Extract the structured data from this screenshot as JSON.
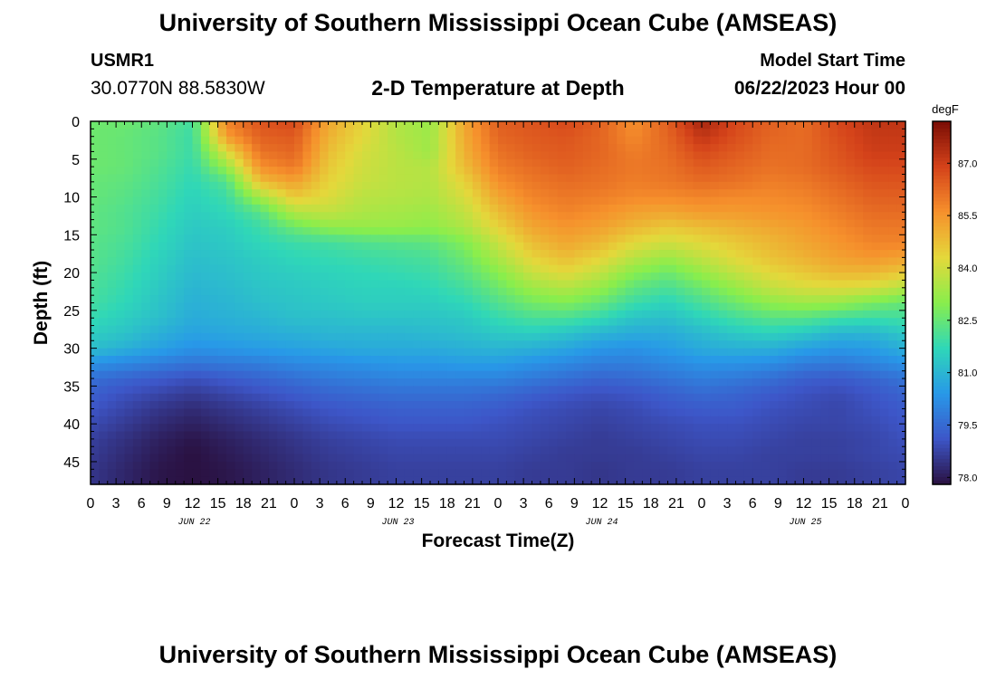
{
  "header": {
    "title": "University of Southern Mississippi Ocean Cube (AMSEAS)",
    "station": "USMR1",
    "coords": "30.0770N  88.5830W",
    "subtitle": "2-D Temperature at Depth",
    "model_start_label": "Model Start Time",
    "model_start_value": "06/22/2023 Hour 00"
  },
  "footer": {
    "title": "University of Southern Mississippi Ocean Cube (AMSEAS)"
  },
  "colors": {
    "colormap": [
      "#2a1141",
      "#3d56c8",
      "#2898e8",
      "#2fd7b8",
      "#89ee4c",
      "#e4d83b",
      "#f6902c",
      "#d4421a",
      "#7a0d05"
    ]
  },
  "chart_data": {
    "type": "heatmap",
    "title": "2-D Temperature at Depth",
    "xlabel": "Forecast Time(Z)",
    "ylabel": "Depth (ft)",
    "xlim": [
      0,
      96
    ],
    "ylim": [
      0,
      48
    ],
    "x_tick_hours": [
      0,
      3,
      6,
      9,
      12,
      15,
      18,
      21,
      24,
      27,
      30,
      33,
      36,
      39,
      42,
      45,
      48,
      51,
      54,
      57,
      60,
      63,
      66,
      69,
      72,
      75,
      78,
      81,
      84,
      87,
      90,
      93,
      96
    ],
    "x_tick_labels": [
      "0",
      "3",
      "6",
      "9",
      "12",
      "15",
      "18",
      "21",
      "0",
      "3",
      "6",
      "9",
      "12",
      "15",
      "18",
      "21",
      "0",
      "3",
      "6",
      "9",
      "12",
      "15",
      "18",
      "21",
      "0",
      "3",
      "6",
      "9",
      "12",
      "15",
      "18",
      "21",
      "0"
    ],
    "date_labels": [
      {
        "hour": 12,
        "text": "JUN 22"
      },
      {
        "hour": 36,
        "text": "JUN 23"
      },
      {
        "hour": 60,
        "text": "JUN 24"
      },
      {
        "hour": 84,
        "text": "JUN 25"
      }
    ],
    "y_ticks": [
      0,
      5,
      10,
      15,
      20,
      25,
      30,
      35,
      40,
      45
    ],
    "colorbar": {
      "units": "degF",
      "vmin": 77.8,
      "vmax": 88.2,
      "ticks": [
        78.0,
        79.5,
        81.0,
        82.5,
        84.0,
        85.5,
        87.0
      ],
      "tick_labels": [
        "78.0",
        "79.5",
        "81.0",
        "82.5",
        "84.0",
        "85.5",
        "87.0"
      ]
    },
    "depths": [
      0,
      2,
      4,
      6,
      8,
      10,
      12,
      14,
      16,
      18,
      20,
      22,
      24,
      26,
      28,
      30,
      32,
      34,
      36,
      38,
      40,
      42,
      44,
      46,
      48
    ],
    "times": [
      0,
      4,
      8,
      12,
      16,
      20,
      24,
      28,
      32,
      36,
      40,
      44,
      48,
      52,
      56,
      60,
      64,
      68,
      72,
      76,
      80,
      84,
      88,
      92,
      96
    ],
    "temperature_degF": [
      [
        82.6,
        82.6,
        82.4,
        82.0,
        85.8,
        86.6,
        86.8,
        85.2,
        84.4,
        83.6,
        83.2,
        85.2,
        86.4,
        86.6,
        86.8,
        86.4,
        85.6,
        86.4,
        87.6,
        86.8,
        86.4,
        86.2,
        86.8,
        87.2,
        87.2
      ],
      [
        82.6,
        82.5,
        82.3,
        81.9,
        85.4,
        86.4,
        86.5,
        85.0,
        84.3,
        83.6,
        83.3,
        85.1,
        86.3,
        86.5,
        86.6,
        86.3,
        85.7,
        86.3,
        87.2,
        86.7,
        86.3,
        86.2,
        86.7,
        87.1,
        87.1
      ],
      [
        82.6,
        82.5,
        82.3,
        81.9,
        84.2,
        86.1,
        86.3,
        84.8,
        84.1,
        83.7,
        83.3,
        85.0,
        86.1,
        86.4,
        86.5,
        86.3,
        85.9,
        86.2,
        86.8,
        86.5,
        86.2,
        86.2,
        86.6,
        87.0,
        87.0
      ],
      [
        82.6,
        82.5,
        82.2,
        81.8,
        83.2,
        85.6,
        86.0,
        84.6,
        84.0,
        83.7,
        83.6,
        84.8,
        85.9,
        86.2,
        86.4,
        86.2,
        86.0,
        86.1,
        86.5,
        86.3,
        86.1,
        86.2,
        86.5,
        86.8,
        86.8
      ],
      [
        82.5,
        82.4,
        82.1,
        81.7,
        82.2,
        84.8,
        85.3,
        84.4,
        83.9,
        83.7,
        83.6,
        84.4,
        85.6,
        86.0,
        86.2,
        86.1,
        85.9,
        86.0,
        86.2,
        86.1,
        85.9,
        86.0,
        86.3,
        86.6,
        86.6
      ],
      [
        82.5,
        82.3,
        82.0,
        81.6,
        81.9,
        83.4,
        84.6,
        84.2,
        83.7,
        83.6,
        83.5,
        84.1,
        85.2,
        85.8,
        86.0,
        85.9,
        85.7,
        85.7,
        85.8,
        85.7,
        85.7,
        85.8,
        86.1,
        86.4,
        86.4
      ],
      [
        82.4,
        82.2,
        81.9,
        81.5,
        81.7,
        82.3,
        83.6,
        83.8,
        83.5,
        83.4,
        83.3,
        83.8,
        84.8,
        85.5,
        85.8,
        85.6,
        85.3,
        85.2,
        85.4,
        85.4,
        85.5,
        85.6,
        85.9,
        86.2,
        86.2
      ],
      [
        82.4,
        82.2,
        81.8,
        81.4,
        81.5,
        81.9,
        82.6,
        83.1,
        83.2,
        83.2,
        83.1,
        83.5,
        84.4,
        85.2,
        85.5,
        85.3,
        84.9,
        84.6,
        84.8,
        85.0,
        85.2,
        85.4,
        85.7,
        86.0,
        86.0
      ],
      [
        82.3,
        82.1,
        81.7,
        81.3,
        81.4,
        81.7,
        81.9,
        82.0,
        82.2,
        82.3,
        82.4,
        82.9,
        83.9,
        84.8,
        85.2,
        84.9,
        84.3,
        84.0,
        84.3,
        84.6,
        84.9,
        85.2,
        85.5,
        85.8,
        85.8
      ],
      [
        82.3,
        82.0,
        81.6,
        81.2,
        81.3,
        81.5,
        81.7,
        81.8,
        81.9,
        82.0,
        82.1,
        82.6,
        83.5,
        84.4,
        84.8,
        84.4,
        83.7,
        83.3,
        83.8,
        84.3,
        84.7,
        85.0,
        85.3,
        85.5,
        85.3
      ],
      [
        82.2,
        81.9,
        81.5,
        81.1,
        81.2,
        81.4,
        81.5,
        81.6,
        81.7,
        81.8,
        81.9,
        82.3,
        83.0,
        83.9,
        84.3,
        83.8,
        83.0,
        82.6,
        83.2,
        83.8,
        84.3,
        84.6,
        84.9,
        84.9,
        84.6
      ],
      [
        82.1,
        81.8,
        81.4,
        81.0,
        81.1,
        81.3,
        81.4,
        81.5,
        81.6,
        81.6,
        81.7,
        82.0,
        82.6,
        83.3,
        83.6,
        83.2,
        82.4,
        82.1,
        82.6,
        83.2,
        83.8,
        84.1,
        84.2,
        84.1,
        83.6
      ],
      [
        82.0,
        81.7,
        81.3,
        80.9,
        81.0,
        81.2,
        81.3,
        81.4,
        81.5,
        81.5,
        81.5,
        81.7,
        82.2,
        82.7,
        82.9,
        82.5,
        81.9,
        81.6,
        82.1,
        82.6,
        83.1,
        83.3,
        83.2,
        82.8,
        82.5
      ],
      [
        81.8,
        81.5,
        81.2,
        80.8,
        80.9,
        81.0,
        81.2,
        81.2,
        81.3,
        81.3,
        81.3,
        81.4,
        81.8,
        82.1,
        82.1,
        81.8,
        81.3,
        81.2,
        81.6,
        82.0,
        82.3,
        82.3,
        82.0,
        81.9,
        82.0
      ],
      [
        81.5,
        81.3,
        80.9,
        80.6,
        80.7,
        80.8,
        80.9,
        81.0,
        81.0,
        81.0,
        81.1,
        81.2,
        81.4,
        81.5,
        81.3,
        81.0,
        80.8,
        80.8,
        81.1,
        81.4,
        81.6,
        81.4,
        81.0,
        81.0,
        81.4
      ],
      [
        81.2,
        80.9,
        80.6,
        80.3,
        80.4,
        80.5,
        80.6,
        80.7,
        80.8,
        80.8,
        80.8,
        80.9,
        81.0,
        80.9,
        80.7,
        80.4,
        80.3,
        80.5,
        80.8,
        80.9,
        80.9,
        80.6,
        80.4,
        80.5,
        80.9
      ],
      [
        80.3,
        80.1,
        79.9,
        79.7,
        79.8,
        79.9,
        80.1,
        80.2,
        80.3,
        80.4,
        80.4,
        80.5,
        80.5,
        80.3,
        80.1,
        79.9,
        79.9,
        80.1,
        80.3,
        80.3,
        80.2,
        79.9,
        79.8,
        80.0,
        80.3
      ],
      [
        79.6,
        79.4,
        79.2,
        79.0,
        79.2,
        79.4,
        79.6,
        79.8,
        79.9,
        80.0,
        80.0,
        80.0,
        80.0,
        79.8,
        79.6,
        79.4,
        79.5,
        79.7,
        79.9,
        79.8,
        79.6,
        79.3,
        79.2,
        79.4,
        79.7
      ],
      [
        79.3,
        79.0,
        78.8,
        78.6,
        78.8,
        79.0,
        79.2,
        79.4,
        79.5,
        79.6,
        79.6,
        79.6,
        79.5,
        79.3,
        79.1,
        79.0,
        79.1,
        79.3,
        79.5,
        79.4,
        79.2,
        79.0,
        78.9,
        79.1,
        79.4
      ],
      [
        79.1,
        78.8,
        78.5,
        78.3,
        78.5,
        78.7,
        78.9,
        79.1,
        79.2,
        79.3,
        79.3,
        79.3,
        79.2,
        79.0,
        78.9,
        78.8,
        78.9,
        79.1,
        79.2,
        79.2,
        79.0,
        78.9,
        78.8,
        79.0,
        79.2
      ],
      [
        78.9,
        78.6,
        78.3,
        78.1,
        78.3,
        78.5,
        78.7,
        78.9,
        79.0,
        79.1,
        79.1,
        79.1,
        79.0,
        78.9,
        78.8,
        78.7,
        78.8,
        78.9,
        79.0,
        79.0,
        78.9,
        78.8,
        78.8,
        78.9,
        79.1
      ],
      [
        78.7,
        78.4,
        78.1,
        77.9,
        78.1,
        78.3,
        78.5,
        78.7,
        78.8,
        78.9,
        78.9,
        78.9,
        78.9,
        78.8,
        78.7,
        78.6,
        78.7,
        78.8,
        78.9,
        78.9,
        78.8,
        78.7,
        78.7,
        78.8,
        79.0
      ],
      [
        78.6,
        78.3,
        78.0,
        77.8,
        78.0,
        78.2,
        78.4,
        78.6,
        78.7,
        78.8,
        78.8,
        78.8,
        78.8,
        78.7,
        78.6,
        78.6,
        78.6,
        78.7,
        78.8,
        78.8,
        78.7,
        78.7,
        78.7,
        78.8,
        78.9
      ],
      [
        78.5,
        78.2,
        77.9,
        77.8,
        77.9,
        78.1,
        78.3,
        78.5,
        78.6,
        78.7,
        78.7,
        78.7,
        78.7,
        78.6,
        78.6,
        78.5,
        78.6,
        78.6,
        78.7,
        78.7,
        78.7,
        78.6,
        78.6,
        78.7,
        78.8
      ],
      [
        78.5,
        78.2,
        77.9,
        77.8,
        77.9,
        78.1,
        78.3,
        78.5,
        78.6,
        78.7,
        78.7,
        78.7,
        78.7,
        78.6,
        78.6,
        78.5,
        78.6,
        78.6,
        78.7,
        78.7,
        78.7,
        78.6,
        78.6,
        78.7,
        78.8
      ]
    ]
  }
}
